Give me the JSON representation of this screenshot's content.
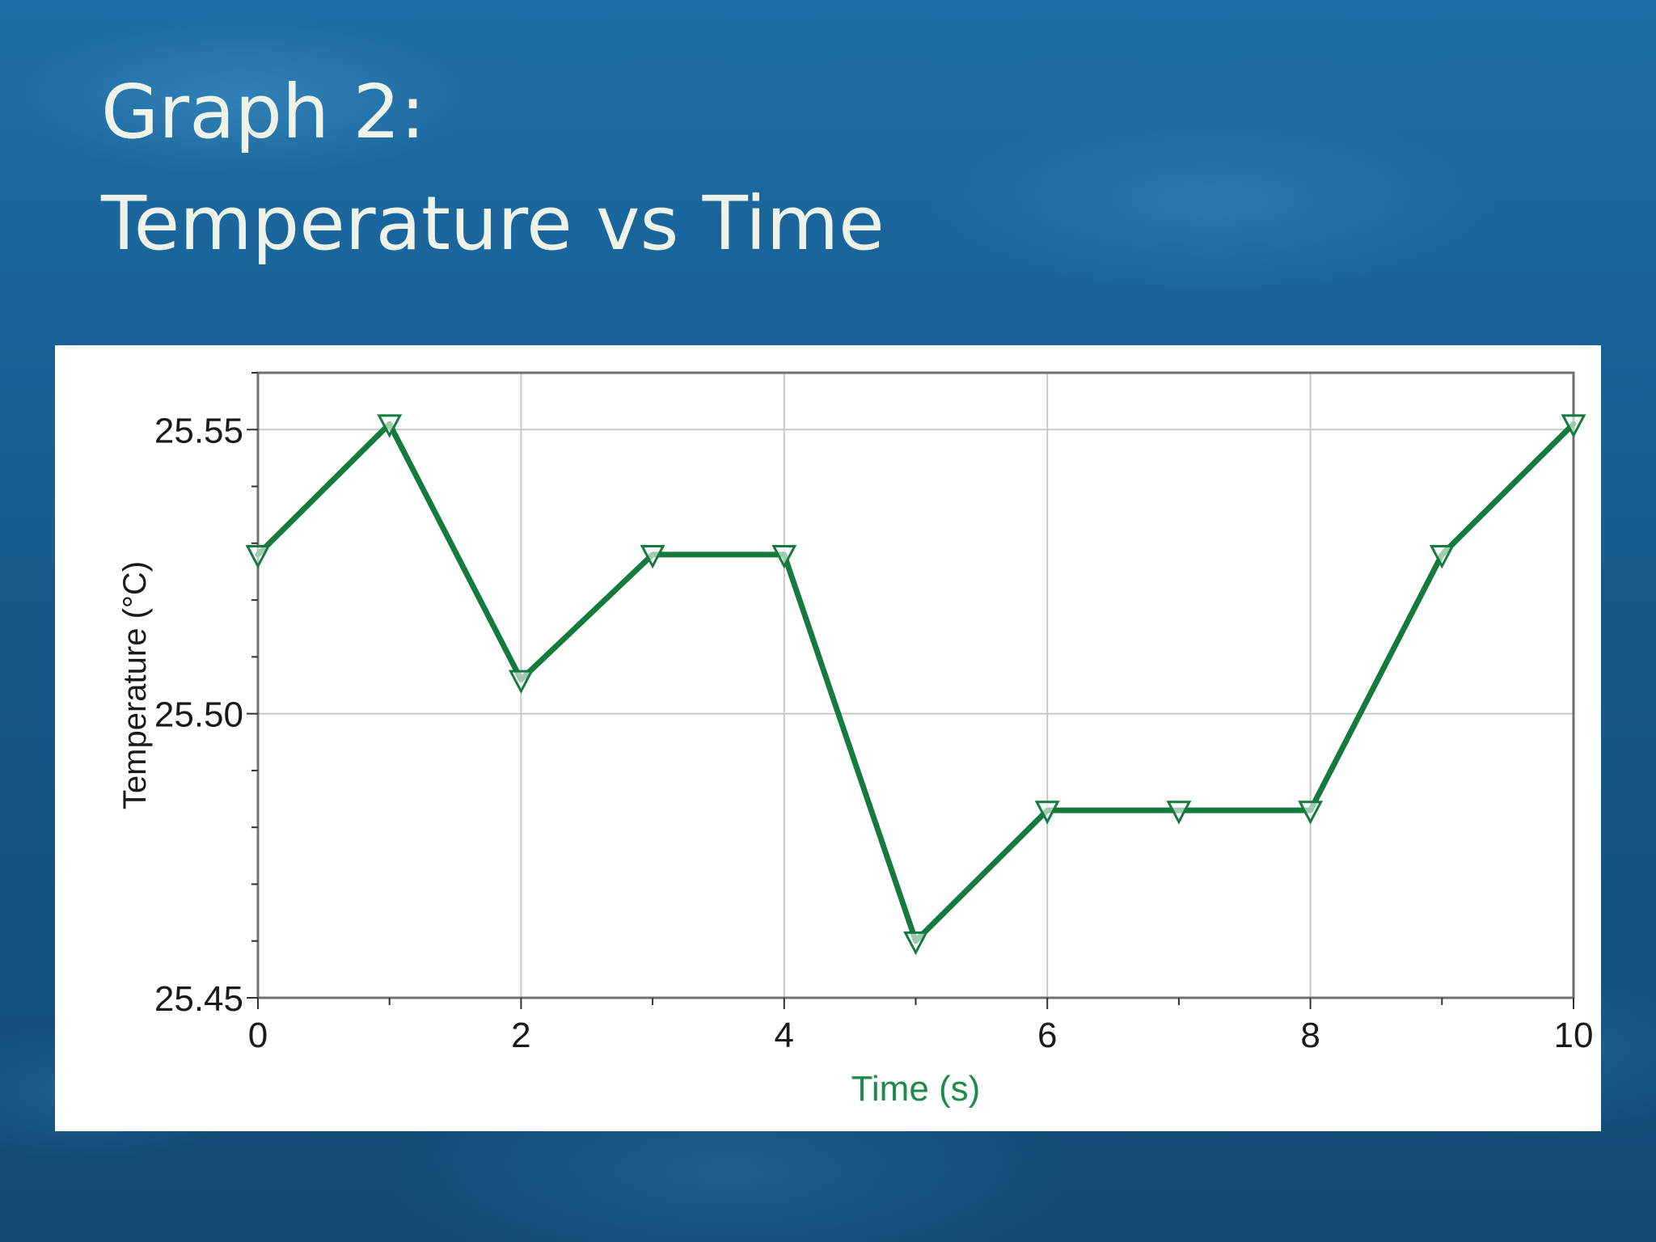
{
  "slide": {
    "title_line1": "Graph 2:",
    "title_line2": "Temperature vs Time"
  },
  "colors": {
    "series": "#157a3e",
    "x_axis_title": "#1f8a4c",
    "grid": "#c8c8c8",
    "axis": "#707070"
  },
  "chart_data": {
    "type": "line",
    "xlabel": "Time (s)",
    "ylabel": "Temperature (°C)",
    "xlim": [
      0,
      10
    ],
    "ylim": [
      25.45,
      25.56
    ],
    "x_ticks": [
      "0",
      "2",
      "4",
      "6",
      "8",
      "10"
    ],
    "y_ticks": [
      "25.45",
      "25.50",
      "25.55"
    ],
    "grid": true,
    "marker": "open-triangle-down",
    "series": [
      {
        "x": [
          0,
          1,
          2,
          3,
          4,
          5,
          6,
          7,
          8,
          9,
          10
        ],
        "values": [
          25.528,
          25.551,
          25.506,
          25.528,
          25.528,
          25.46,
          25.483,
          25.483,
          25.483,
          25.528,
          25.551
        ]
      }
    ]
  }
}
